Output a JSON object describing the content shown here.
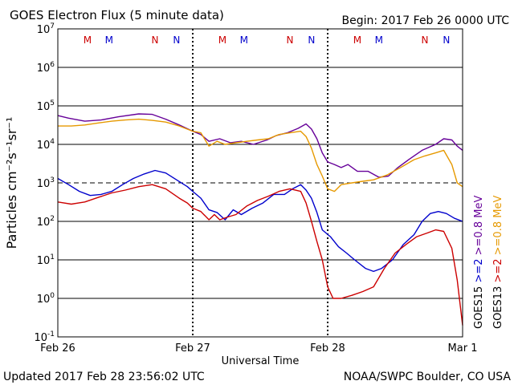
{
  "chart_data": {
    "type": "line",
    "title": "GOES Electron Flux (5 minute data)",
    "begin": "Begin: 2017 Feb 26 0000 UTC",
    "xlabel": "Universal Time",
    "ylabel": "Particles cm⁻²s⁻¹sr⁻¹",
    "y_scale": "log",
    "ylim": [
      0.1,
      10000000
    ],
    "xlim": [
      "2017-02-26 00:00",
      "2017-03-01 00:00"
    ],
    "x_ticks": [
      "Feb 26",
      "Feb 27",
      "Feb 28",
      "Mar 1"
    ],
    "y_ticks": [
      {
        "base": "10",
        "exp": "-1"
      },
      {
        "base": "10",
        "exp": "0"
      },
      {
        "base": "10",
        "exp": "1"
      },
      {
        "base": "10",
        "exp": "2"
      },
      {
        "base": "10",
        "exp": "3"
      },
      {
        "base": "10",
        "exp": "4"
      },
      {
        "base": "10",
        "exp": "5"
      },
      {
        "base": "10",
        "exp": "6"
      },
      {
        "base": "10",
        "exp": "7"
      }
    ],
    "threshold": 1000,
    "markers": [
      {
        "label": "M",
        "day": 0.22,
        "color": "#cc0000"
      },
      {
        "label": "M",
        "day": 0.38,
        "color": "#0000cc"
      },
      {
        "label": "N",
        "day": 0.72,
        "color": "#cc0000"
      },
      {
        "label": "N",
        "day": 0.88,
        "color": "#0000cc"
      },
      {
        "label": "M",
        "day": 1.22,
        "color": "#cc0000"
      },
      {
        "label": "M",
        "day": 1.38,
        "color": "#0000cc"
      },
      {
        "label": "N",
        "day": 1.72,
        "color": "#cc0000"
      },
      {
        "label": "N",
        "day": 1.88,
        "color": "#0000cc"
      },
      {
        "label": "M",
        "day": 2.22,
        "color": "#cc0000"
      },
      {
        "label": "M",
        "day": 2.38,
        "color": "#0000cc"
      },
      {
        "label": "N",
        "day": 2.72,
        "color": "#cc0000"
      },
      {
        "label": "N",
        "day": 2.88,
        "color": "#0000cc"
      }
    ],
    "legend": {
      "placement": "right",
      "groups": [
        {
          "name": "GOES15",
          "entries": [
            {
              "label": ">=2",
              "color": "#0000cc"
            },
            {
              "label": ">=0.8 MeV",
              "color": "#660099"
            }
          ]
        },
        {
          "name": "GOES13",
          "entries": [
            {
              "label": ">=2",
              "color": "#cc0000"
            },
            {
              "label": ">=0.8 MeV",
              "color": "#e69900"
            }
          ]
        }
      ]
    },
    "series": [
      {
        "id": "g15_08",
        "color": "#660099",
        "points": [
          [
            0.0,
            56000
          ],
          [
            0.08,
            48000
          ],
          [
            0.2,
            40000
          ],
          [
            0.32,
            43000
          ],
          [
            0.45,
            52000
          ],
          [
            0.6,
            62000
          ],
          [
            0.7,
            60000
          ],
          [
            0.8,
            45000
          ],
          [
            0.9,
            32000
          ],
          [
            1.0,
            22000
          ],
          [
            1.06,
            18000
          ],
          [
            1.12,
            12000
          ],
          [
            1.2,
            14000
          ],
          [
            1.28,
            11000
          ],
          [
            1.36,
            12000
          ],
          [
            1.45,
            10000
          ],
          [
            1.55,
            13000
          ],
          [
            1.62,
            17000
          ],
          [
            1.7,
            20000
          ],
          [
            1.78,
            26000
          ],
          [
            1.84,
            34000
          ],
          [
            1.88,
            25000
          ],
          [
            1.92,
            14000
          ],
          [
            1.96,
            6000
          ],
          [
            2.0,
            3500
          ],
          [
            2.05,
            3000
          ],
          [
            2.1,
            2500
          ],
          [
            2.15,
            3000
          ],
          [
            2.22,
            2000
          ],
          [
            2.3,
            2000
          ],
          [
            2.38,
            1400
          ],
          [
            2.45,
            1500
          ],
          [
            2.52,
            2500
          ],
          [
            2.6,
            4000
          ],
          [
            2.7,
            7000
          ],
          [
            2.8,
            10000
          ],
          [
            2.86,
            14000
          ],
          [
            2.92,
            13000
          ],
          [
            2.96,
            9000
          ],
          [
            3.0,
            7000
          ]
        ]
      },
      {
        "id": "g13_08",
        "color": "#e69900",
        "points": [
          [
            0.0,
            30000
          ],
          [
            0.1,
            30000
          ],
          [
            0.2,
            32000
          ],
          [
            0.3,
            36000
          ],
          [
            0.4,
            40000
          ],
          [
            0.5,
            43000
          ],
          [
            0.6,
            45000
          ],
          [
            0.7,
            42000
          ],
          [
            0.8,
            38000
          ],
          [
            0.9,
            30000
          ],
          [
            1.0,
            22000
          ],
          [
            1.06,
            20000
          ],
          [
            1.12,
            9000
          ],
          [
            1.18,
            12000
          ],
          [
            1.24,
            10000
          ],
          [
            1.32,
            11000
          ],
          [
            1.4,
            12000
          ],
          [
            1.48,
            13000
          ],
          [
            1.56,
            14000
          ],
          [
            1.64,
            18000
          ],
          [
            1.72,
            20000
          ],
          [
            1.8,
            22000
          ],
          [
            1.84,
            16000
          ],
          [
            1.88,
            8000
          ],
          [
            1.92,
            3000
          ],
          [
            1.96,
            1500
          ],
          [
            2.0,
            700
          ],
          [
            2.05,
            600
          ],
          [
            2.1,
            900
          ],
          [
            2.18,
            1000
          ],
          [
            2.26,
            1100
          ],
          [
            2.34,
            1200
          ],
          [
            2.44,
            1600
          ],
          [
            2.54,
            2500
          ],
          [
            2.64,
            4000
          ],
          [
            2.72,
            5000
          ],
          [
            2.8,
            6000
          ],
          [
            2.86,
            7000
          ],
          [
            2.92,
            3000
          ],
          [
            2.96,
            1000
          ],
          [
            3.0,
            800
          ]
        ]
      },
      {
        "id": "g15_2",
        "color": "#0000cc",
        "points": [
          [
            0.0,
            1300
          ],
          [
            0.08,
            900
          ],
          [
            0.16,
            600
          ],
          [
            0.24,
            470
          ],
          [
            0.32,
            500
          ],
          [
            0.4,
            600
          ],
          [
            0.48,
            900
          ],
          [
            0.56,
            1300
          ],
          [
            0.64,
            1700
          ],
          [
            0.72,
            2100
          ],
          [
            0.8,
            1800
          ],
          [
            0.88,
            1200
          ],
          [
            0.96,
            800
          ],
          [
            1.0,
            600
          ],
          [
            1.06,
            400
          ],
          [
            1.12,
            200
          ],
          [
            1.18,
            170
          ],
          [
            1.24,
            110
          ],
          [
            1.3,
            200
          ],
          [
            1.36,
            150
          ],
          [
            1.44,
            220
          ],
          [
            1.52,
            300
          ],
          [
            1.6,
            500
          ],
          [
            1.68,
            500
          ],
          [
            1.74,
            700
          ],
          [
            1.8,
            900
          ],
          [
            1.84,
            650
          ],
          [
            1.88,
            400
          ],
          [
            1.92,
            170
          ],
          [
            1.96,
            60
          ],
          [
            2.02,
            40
          ],
          [
            2.08,
            22
          ],
          [
            2.14,
            15
          ],
          [
            2.2,
            10
          ],
          [
            2.28,
            6
          ],
          [
            2.34,
            5
          ],
          [
            2.4,
            6
          ],
          [
            2.48,
            10
          ],
          [
            2.56,
            25
          ],
          [
            2.64,
            45
          ],
          [
            2.7,
            100
          ],
          [
            2.76,
            160
          ],
          [
            2.82,
            180
          ],
          [
            2.88,
            160
          ],
          [
            2.94,
            120
          ],
          [
            3.0,
            100
          ]
        ]
      },
      {
        "id": "g13_2",
        "color": "#cc0000",
        "points": [
          [
            0.0,
            320
          ],
          [
            0.1,
            280
          ],
          [
            0.2,
            320
          ],
          [
            0.3,
            420
          ],
          [
            0.4,
            550
          ],
          [
            0.5,
            650
          ],
          [
            0.6,
            800
          ],
          [
            0.7,
            900
          ],
          [
            0.8,
            700
          ],
          [
            0.9,
            400
          ],
          [
            0.96,
            300
          ],
          [
            1.0,
            220
          ],
          [
            1.06,
            180
          ],
          [
            1.12,
            110
          ],
          [
            1.16,
            150
          ],
          [
            1.2,
            110
          ],
          [
            1.26,
            130
          ],
          [
            1.32,
            150
          ],
          [
            1.4,
            250
          ],
          [
            1.48,
            350
          ],
          [
            1.56,
            450
          ],
          [
            1.64,
            600
          ],
          [
            1.72,
            700
          ],
          [
            1.8,
            600
          ],
          [
            1.84,
            300
          ],
          [
            1.88,
            100
          ],
          [
            1.92,
            30
          ],
          [
            1.96,
            10
          ],
          [
            2.0,
            2
          ],
          [
            2.04,
            1
          ],
          [
            2.1,
            1
          ],
          [
            2.18,
            1.2
          ],
          [
            2.26,
            1.5
          ],
          [
            2.34,
            2
          ],
          [
            2.42,
            6
          ],
          [
            2.5,
            15
          ],
          [
            2.58,
            25
          ],
          [
            2.66,
            40
          ],
          [
            2.74,
            50
          ],
          [
            2.8,
            60
          ],
          [
            2.86,
            55
          ],
          [
            2.92,
            20
          ],
          [
            2.96,
            3
          ],
          [
            3.0,
            0.2
          ]
        ]
      }
    ]
  },
  "footer": {
    "updated": "Updated 2017 Feb 28 23:56:02 UTC",
    "credit": "NOAA/SWPC Boulder, CO USA"
  }
}
